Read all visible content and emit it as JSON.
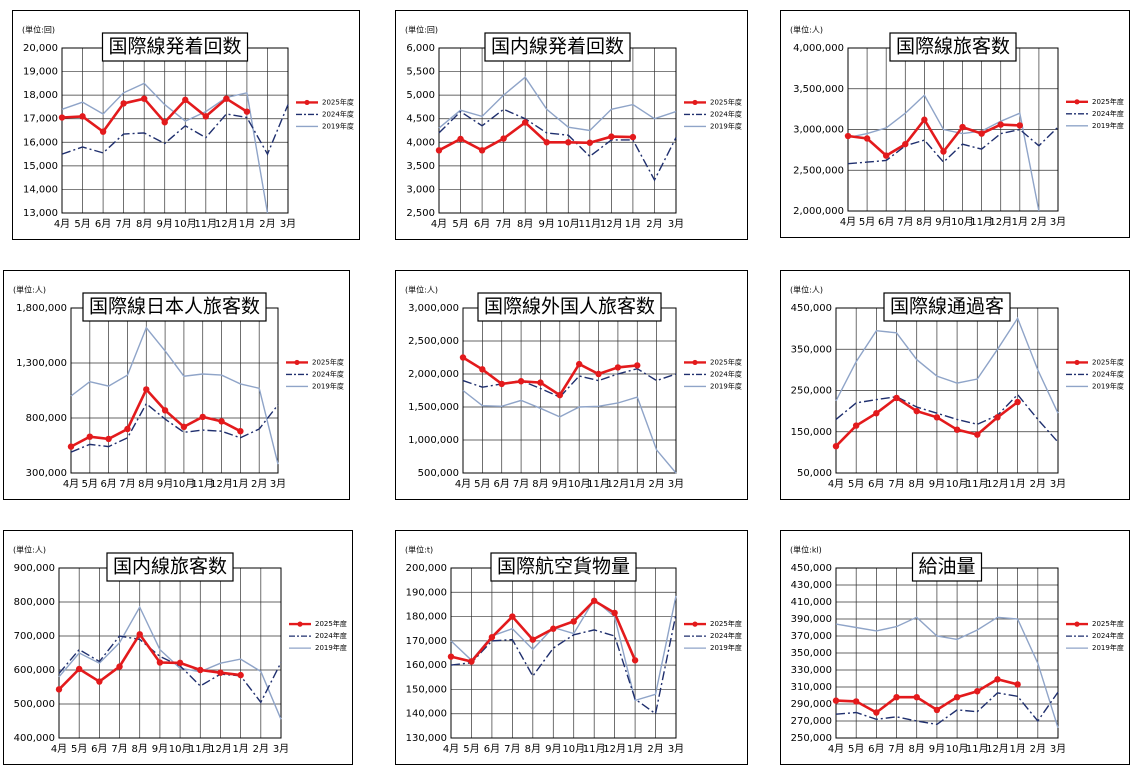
{
  "chart_data": [
    {
      "type": "line",
      "title": "国際線発着回数",
      "unit": "(単位:回)",
      "categories": [
        "4月",
        "5月",
        "6月",
        "7月",
        "8月",
        "9月",
        "10月",
        "11月",
        "12月",
        "1月",
        "2月",
        "3月"
      ],
      "ylim": [
        13000,
        20000
      ],
      "yticks": [
        {
          "value": 13000,
          "label": "13,000"
        },
        {
          "value": 14000,
          "label": "14,000"
        },
        {
          "value": 15000,
          "label": "15,000"
        },
        {
          "value": 16000,
          "label": "16,000"
        },
        {
          "value": 17000,
          "label": "17,000"
        },
        {
          "value": 18000,
          "label": "18,000"
        },
        {
          "value": 19000,
          "label": "19,000"
        },
        {
          "value": 20000,
          "label": "20,000"
        }
      ],
      "series": [
        {
          "name": "2025年度",
          "color": "#e31a1c",
          "line_style": "solid",
          "markers": true,
          "values": [
            17050,
            17100,
            16450,
            17650,
            17850,
            16850,
            17800,
            17100,
            17850,
            17300,
            null,
            null
          ]
        },
        {
          "name": "2024年度",
          "color": "#1f2f6e",
          "line_style": "dashdot",
          "markers": false,
          "values": [
            15500,
            15800,
            15550,
            16350,
            16400,
            15950,
            16700,
            16200,
            17200,
            17050,
            15500,
            17600
          ]
        },
        {
          "name": "2019年度",
          "color": "#8fa4c8",
          "line_style": "solid",
          "markers": false,
          "values": [
            17400,
            17700,
            17200,
            18100,
            18500,
            17600,
            16900,
            17300,
            17900,
            18100,
            13000,
            null
          ]
        }
      ]
    },
    {
      "type": "line",
      "title": "国内線発着回数",
      "unit": "(単位:回)",
      "categories": [
        "4月",
        "5月",
        "6月",
        "7月",
        "8月",
        "9月",
        "10月",
        "11月",
        "12月",
        "1月",
        "2月",
        "3月"
      ],
      "ylim": [
        2500,
        6000
      ],
      "yticks": [
        {
          "value": 2500,
          "label": "2,500"
        },
        {
          "value": 3000,
          "label": "3,000"
        },
        {
          "value": 3500,
          "label": "3,500"
        },
        {
          "value": 4000,
          "label": "4,000"
        },
        {
          "value": 4500,
          "label": "4,500"
        },
        {
          "value": 5000,
          "label": "5,000"
        },
        {
          "value": 5500,
          "label": "5,500"
        },
        {
          "value": 6000,
          "label": "6,000"
        }
      ],
      "series": [
        {
          "name": "2025年度",
          "color": "#e31a1c",
          "line_style": "solid",
          "markers": true,
          "values": [
            3830,
            4070,
            3830,
            4080,
            4420,
            4000,
            4000,
            3990,
            4120,
            4110,
            null,
            null
          ]
        },
        {
          "name": "2024年度",
          "color": "#1f2f6e",
          "line_style": "dashdot",
          "markers": false,
          "values": [
            4200,
            4650,
            4350,
            4700,
            4500,
            4200,
            4150,
            3700,
            4050,
            4050,
            3200,
            4100
          ]
        },
        {
          "name": "2019年度",
          "color": "#8fa4c8",
          "line_style": "solid",
          "markers": false,
          "values": [
            4300,
            4680,
            4550,
            5000,
            5380,
            4700,
            4320,
            4250,
            4700,
            4800,
            4500,
            4650
          ]
        }
      ]
    },
    {
      "type": "line",
      "title": "国際線旅客数",
      "unit": "(単位:人)",
      "categories": [
        "4月",
        "5月",
        "6月",
        "7月",
        "8月",
        "9月",
        "10月",
        "11月",
        "12月",
        "1月",
        "2月",
        "3月"
      ],
      "ylim": [
        2000000,
        4000000
      ],
      "yticks": [
        {
          "value": 2000000,
          "label": "2,000,000"
        },
        {
          "value": 2500000,
          "label": "2,500,000"
        },
        {
          "value": 3000000,
          "label": "3,000,000"
        },
        {
          "value": 3500000,
          "label": "3,500,000"
        },
        {
          "value": 4000000,
          "label": "4,000,000"
        }
      ],
      "series": [
        {
          "name": "2025年度",
          "color": "#e31a1c",
          "line_style": "solid",
          "markers": true,
          "values": [
            2920000,
            2890000,
            2680000,
            2820000,
            3120000,
            2730000,
            3030000,
            2950000,
            3060000,
            3050000,
            null,
            null
          ]
        },
        {
          "name": "2024年度",
          "color": "#1f2f6e",
          "line_style": "dashdot",
          "markers": false,
          "values": [
            2580000,
            2600000,
            2620000,
            2800000,
            2870000,
            2600000,
            2820000,
            2760000,
            2950000,
            3000000,
            2800000,
            3030000
          ]
        },
        {
          "name": "2019年度",
          "color": "#8fa4c8",
          "line_style": "solid",
          "markers": false,
          "values": [
            2900000,
            2950000,
            3020000,
            3200000,
            3420000,
            3000000,
            2950000,
            2980000,
            3100000,
            3200000,
            2000000,
            null
          ]
        }
      ]
    },
    {
      "type": "line",
      "title": "国際線日本人旅客数",
      "unit": "(単位:人)",
      "categories": [
        "4月",
        "5月",
        "6月",
        "7月",
        "8月",
        "9月",
        "10月",
        "11月",
        "12月",
        "1月",
        "2月",
        "3月"
      ],
      "ylim": [
        300000,
        1800000
      ],
      "yticks": [
        {
          "value": 300000,
          "label": "300,000"
        },
        {
          "value": 800000,
          "label": "800,000"
        },
        {
          "value": 1300000,
          "label": "1,300,000"
        },
        {
          "value": 1800000,
          "label": "1,800,000"
        }
      ],
      "series": [
        {
          "name": "2025年度",
          "color": "#e31a1c",
          "line_style": "solid",
          "markers": true,
          "values": [
            540000,
            630000,
            610000,
            700000,
            1060000,
            870000,
            720000,
            810000,
            770000,
            680000,
            null,
            null
          ]
        },
        {
          "name": "2024年度",
          "color": "#1f2f6e",
          "line_style": "dashdot",
          "markers": false,
          "values": [
            490000,
            560000,
            540000,
            620000,
            930000,
            790000,
            670000,
            690000,
            680000,
            620000,
            700000,
            920000
          ]
        },
        {
          "name": "2019年度",
          "color": "#8fa4c8",
          "line_style": "solid",
          "markers": false,
          "values": [
            1000000,
            1130000,
            1090000,
            1190000,
            1620000,
            1410000,
            1180000,
            1200000,
            1190000,
            1110000,
            1070000,
            380000
          ]
        }
      ]
    },
    {
      "type": "line",
      "title": "国際線外国人旅客数",
      "unit": "(単位:人)",
      "categories": [
        "4月",
        "5月",
        "6月",
        "7月",
        "8月",
        "9月",
        "10月",
        "11月",
        "12月",
        "1月",
        "2月",
        "3月"
      ],
      "ylim": [
        500000,
        3000000
      ],
      "yticks": [
        {
          "value": 500000,
          "label": "500,000"
        },
        {
          "value": 1000000,
          "label": "1,000,000"
        },
        {
          "value": 1500000,
          "label": "1,500,000"
        },
        {
          "value": 2000000,
          "label": "2,000,000"
        },
        {
          "value": 2500000,
          "label": "2,500,000"
        },
        {
          "value": 3000000,
          "label": "3,000,000"
        }
      ],
      "series": [
        {
          "name": "2025年度",
          "color": "#e31a1c",
          "line_style": "solid",
          "markers": true,
          "values": [
            2250000,
            2070000,
            1850000,
            1890000,
            1870000,
            1680000,
            2150000,
            2000000,
            2100000,
            2130000,
            null,
            null
          ]
        },
        {
          "name": "2024年度",
          "color": "#1f2f6e",
          "line_style": "dashdot",
          "markers": false,
          "values": [
            1900000,
            1800000,
            1850000,
            1900000,
            1780000,
            1650000,
            1970000,
            1900000,
            2000000,
            2080000,
            1900000,
            2000000
          ]
        },
        {
          "name": "2019年度",
          "color": "#8fa4c8",
          "line_style": "solid",
          "markers": false,
          "values": [
            1750000,
            1520000,
            1510000,
            1600000,
            1480000,
            1350000,
            1500000,
            1510000,
            1560000,
            1650000,
            850000,
            500000
          ]
        }
      ]
    },
    {
      "type": "line",
      "title": "国際線通過客",
      "unit": "(単位:人)",
      "categories": [
        "4月",
        "5月",
        "6月",
        "7月",
        "8月",
        "9月",
        "10月",
        "11月",
        "12月",
        "1月",
        "2月",
        "3月"
      ],
      "ylim": [
        50000,
        450000
      ],
      "yticks": [
        {
          "value": 50000,
          "label": "50,000"
        },
        {
          "value": 150000,
          "label": "150,000"
        },
        {
          "value": 250000,
          "label": "250,000"
        },
        {
          "value": 350000,
          "label": "350,000"
        },
        {
          "value": 450000,
          "label": "450,000"
        }
      ],
      "series": [
        {
          "name": "2025年度",
          "color": "#e31a1c",
          "line_style": "solid",
          "markers": true,
          "values": [
            115000,
            165000,
            195000,
            232000,
            200000,
            185000,
            155000,
            143000,
            185000,
            222000,
            null,
            null
          ]
        },
        {
          "name": "2024年度",
          "color": "#1f2f6e",
          "line_style": "dashdot",
          "markers": false,
          "values": [
            180000,
            220000,
            228000,
            235000,
            210000,
            195000,
            180000,
            168000,
            190000,
            240000,
            180000,
            125000
          ]
        },
        {
          "name": "2019年度",
          "color": "#8fa4c8",
          "line_style": "solid",
          "markers": false,
          "values": [
            225000,
            320000,
            395000,
            390000,
            325000,
            285000,
            268000,
            278000,
            350000,
            425000,
            300000,
            195000
          ]
        }
      ]
    },
    {
      "type": "line",
      "title": "国内線旅客数",
      "unit": "(単位:人)",
      "categories": [
        "4月",
        "5月",
        "6月",
        "7月",
        "8月",
        "9月",
        "10月",
        "11月",
        "12月",
        "1月",
        "2月",
        "3月"
      ],
      "ylim": [
        400000,
        900000
      ],
      "yticks": [
        {
          "value": 400000,
          "label": "400,000"
        },
        {
          "value": 500000,
          "label": "500,000"
        },
        {
          "value": 600000,
          "label": "600,000"
        },
        {
          "value": 700000,
          "label": "700,000"
        },
        {
          "value": 800000,
          "label": "800,000"
        },
        {
          "value": 900000,
          "label": "900,000"
        }
      ],
      "series": [
        {
          "name": "2025年度",
          "color": "#e31a1c",
          "line_style": "solid",
          "markers": true,
          "values": [
            543000,
            603000,
            566000,
            610000,
            705000,
            622000,
            621000,
            600000,
            592000,
            585000,
            null,
            null
          ]
        },
        {
          "name": "2024年度",
          "color": "#1f2f6e",
          "line_style": "dashdot",
          "markers": false,
          "values": [
            590000,
            660000,
            625000,
            700000,
            690000,
            640000,
            612000,
            553000,
            588000,
            583000,
            505000,
            622000
          ]
        },
        {
          "name": "2019年度",
          "color": "#8fa4c8",
          "line_style": "solid",
          "markers": false,
          "values": [
            580000,
            650000,
            620000,
            680000,
            785000,
            660000,
            605000,
            595000,
            620000,
            632000,
            596000,
            455000
          ]
        }
      ]
    },
    {
      "type": "line",
      "title": "国際航空貨物量",
      "unit": "(単位:t)",
      "categories": [
        "4月",
        "5月",
        "6月",
        "7月",
        "8月",
        "9月",
        "10月",
        "11月",
        "12月",
        "1月",
        "2月",
        "3月"
      ],
      "ylim": [
        130000,
        200000
      ],
      "yticks": [
        {
          "value": 130000,
          "label": "130,000"
        },
        {
          "value": 140000,
          "label": "140,000"
        },
        {
          "value": 150000,
          "label": "150,000"
        },
        {
          "value": 160000,
          "label": "160,000"
        },
        {
          "value": 170000,
          "label": "170,000"
        },
        {
          "value": 180000,
          "label": "180,000"
        },
        {
          "value": 190000,
          "label": "190,000"
        },
        {
          "value": 200000,
          "label": "200,000"
        }
      ],
      "series": [
        {
          "name": "2025年度",
          "color": "#e31a1c",
          "line_style": "solid",
          "markers": true,
          "values": [
            163500,
            161500,
            171500,
            180000,
            170500,
            175000,
            178000,
            186500,
            181500,
            162000,
            null,
            null
          ]
        },
        {
          "name": "2024年度",
          "color": "#1f2f6e",
          "line_style": "dashdot",
          "markers": false,
          "values": [
            160000,
            161000,
            170000,
            170500,
            155500,
            167000,
            172500,
            174500,
            172000,
            146000,
            140000,
            181000
          ]
        },
        {
          "name": "2019年度",
          "color": "#8fa4c8",
          "line_style": "solid",
          "markers": false,
          "values": [
            170000,
            162000,
            172000,
            175000,
            166500,
            175500,
            173000,
            187000,
            180000,
            145500,
            148000,
            188500
          ]
        }
      ]
    },
    {
      "type": "line",
      "title": "給油量",
      "unit": "(単位:kl)",
      "categories": [
        "4月",
        "5月",
        "6月",
        "7月",
        "8月",
        "9月",
        "10月",
        "11月",
        "12月",
        "1月",
        "2月",
        "3月"
      ],
      "ylim": [
        250000,
        450000
      ],
      "yticks": [
        {
          "value": 250000,
          "label": "250,000"
        },
        {
          "value": 270000,
          "label": "270,000"
        },
        {
          "value": 290000,
          "label": "290,000"
        },
        {
          "value": 310000,
          "label": "310,000"
        },
        {
          "value": 330000,
          "label": "330,000"
        },
        {
          "value": 350000,
          "label": "350,000"
        },
        {
          "value": 370000,
          "label": "370,000"
        },
        {
          "value": 390000,
          "label": "390,000"
        },
        {
          "value": 410000,
          "label": "410,000"
        },
        {
          "value": 430000,
          "label": "430,000"
        },
        {
          "value": 450000,
          "label": "450,000"
        }
      ],
      "series": [
        {
          "name": "2025年度",
          "color": "#e31a1c",
          "line_style": "solid",
          "markers": true,
          "values": [
            294000,
            293000,
            280000,
            298000,
            298000,
            283000,
            298000,
            305000,
            319000,
            313000,
            null,
            null
          ]
        },
        {
          "name": "2024年度",
          "color": "#1f2f6e",
          "line_style": "dashdot",
          "markers": false,
          "values": [
            278000,
            280000,
            272000,
            275000,
            270000,
            266000,
            283000,
            281000,
            303000,
            299000,
            270000,
            304000
          ]
        },
        {
          "name": "2019年度",
          "color": "#8fa4c8",
          "line_style": "solid",
          "markers": false,
          "values": [
            384000,
            380000,
            376000,
            381000,
            392000,
            370000,
            366000,
            377000,
            392000,
            390000,
            338000,
            262000
          ]
        }
      ]
    }
  ]
}
